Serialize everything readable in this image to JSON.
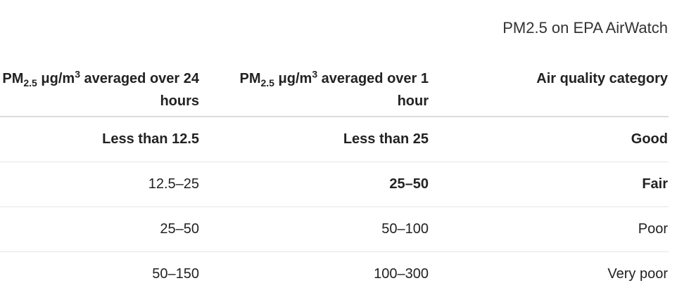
{
  "caption": "PM2.5 on EPA AirWatch",
  "headers": [
    {
      "prefix": "PM",
      "sub": "2.5",
      "mid": " μg/m",
      "sup": "3",
      "rest": " averaged over 24 hours"
    },
    {
      "prefix": "PM",
      "sub": "2.5",
      "mid": " μg/m",
      "sup": "3",
      "rest": " averaged over 1 hour"
    },
    {
      "text": "Air quality category"
    }
  ],
  "rows": [
    {
      "h24": "Less than 12.5",
      "h1": "Less than 25",
      "category": "Good"
    },
    {
      "h24": "12.5–25",
      "h1": "25–50",
      "category": "Fair"
    },
    {
      "h24": "25–50",
      "h1": "50–100",
      "category": "Poor"
    },
    {
      "h24": "50–150",
      "h1": "100–300",
      "category": "Very poor"
    }
  ]
}
